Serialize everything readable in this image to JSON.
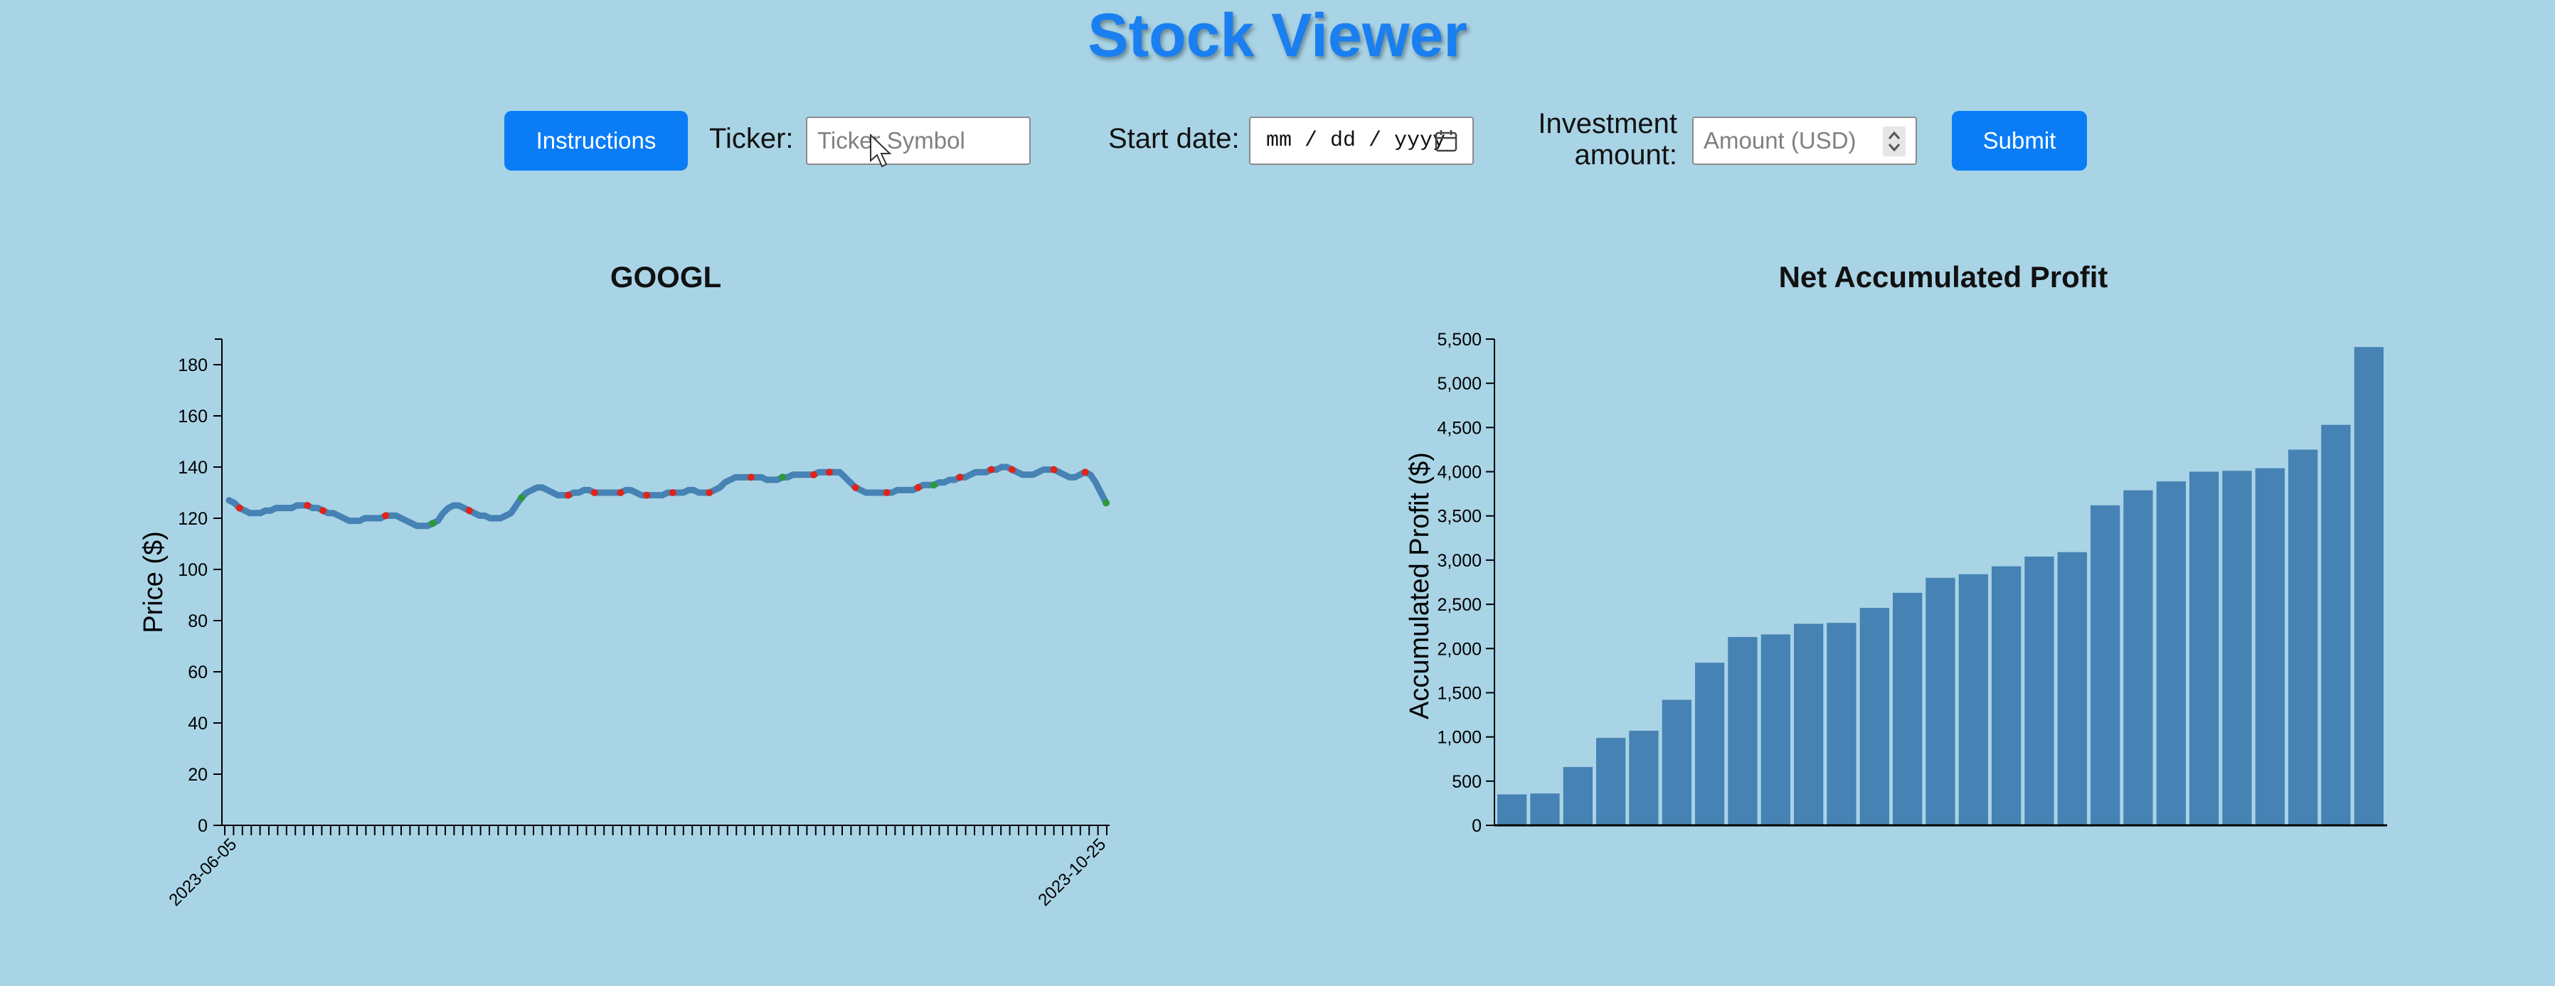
{
  "header": {
    "title": "Stock Viewer"
  },
  "controls": {
    "instructions_label": "Instructions",
    "ticker_label": "Ticker:",
    "ticker_placeholder": "Ticker Symbol",
    "ticker_value": "",
    "start_date_label": "Start date:",
    "start_date_display": "mm / dd / yyyy",
    "investment_label_line1": "Investment",
    "investment_label_line2": "amount:",
    "amount_placeholder": "Amount (USD)",
    "amount_value": "",
    "submit_label": "Submit"
  },
  "colors": {
    "background": "#a9d4e6",
    "accent": "#0a7cf6",
    "title": "#1a7ff0",
    "line": "#4682b4",
    "bar": "#4682b4",
    "buy_marker": "#e0241a",
    "sell_marker": "#2a9a35"
  },
  "chart_data": [
    {
      "type": "line",
      "title": "GOOGL",
      "xlabel": "",
      "ylabel": "Price ($)",
      "ylim": [
        0,
        190
      ],
      "yticks": [
        0,
        20,
        40,
        60,
        80,
        100,
        120,
        140,
        160,
        180
      ],
      "xtick_labels": [
        "2023-06-05",
        "2023-10-25"
      ],
      "x_tick_count": 100,
      "grid": false,
      "series": [
        {
          "values": [
            127,
            126,
            124,
            123,
            122,
            122,
            122,
            123,
            123,
            124,
            124,
            124,
            124,
            125,
            125,
            125,
            124,
            124,
            123,
            122,
            122,
            121,
            120,
            119,
            119,
            119,
            120,
            120,
            120,
            120,
            121,
            121,
            121,
            120,
            119,
            118,
            117,
            117,
            117,
            118,
            119,
            122,
            124,
            125,
            125,
            124,
            123,
            122,
            121,
            121,
            120,
            120,
            120,
            121,
            122,
            125,
            128,
            130,
            131,
            132,
            132,
            131,
            130,
            129,
            129,
            129,
            130,
            130,
            131,
            131,
            130,
            130,
            130,
            130,
            130,
            130,
            131,
            131,
            130,
            129,
            129,
            129,
            129,
            129,
            130,
            130,
            130,
            130,
            131,
            131,
            130,
            130,
            130,
            131,
            132,
            134,
            135,
            136,
            136,
            136,
            136,
            136,
            136,
            135,
            135,
            135,
            136,
            136,
            137,
            137,
            137,
            137,
            137,
            138,
            138,
            138,
            138,
            138,
            136,
            134,
            132,
            131,
            130,
            130,
            130,
            130,
            130,
            130,
            131,
            131,
            131,
            131,
            132,
            133,
            133,
            133,
            134,
            134,
            135,
            135,
            136,
            136,
            137,
            138,
            138,
            138,
            139,
            139,
            140,
            140,
            139,
            138,
            137,
            137,
            137,
            138,
            139,
            139,
            139,
            138,
            137,
            136,
            136,
            137,
            138,
            137,
            134,
            130,
            126
          ]
        }
      ],
      "markers": [
        {
          "i": 2,
          "color": "red"
        },
        {
          "i": 15,
          "color": "red"
        },
        {
          "i": 18,
          "color": "red"
        },
        {
          "i": 30,
          "color": "red"
        },
        {
          "i": 39,
          "color": "green"
        },
        {
          "i": 46,
          "color": "red"
        },
        {
          "i": 56,
          "color": "green"
        },
        {
          "i": 65,
          "color": "red"
        },
        {
          "i": 70,
          "color": "red"
        },
        {
          "i": 75,
          "color": "red"
        },
        {
          "i": 80,
          "color": "red"
        },
        {
          "i": 85,
          "color": "red"
        },
        {
          "i": 92,
          "color": "red"
        },
        {
          "i": 100,
          "color": "red"
        },
        {
          "i": 106,
          "color": "green"
        },
        {
          "i": 112,
          "color": "red"
        },
        {
          "i": 115,
          "color": "red"
        },
        {
          "i": 120,
          "color": "red"
        },
        {
          "i": 126,
          "color": "red"
        },
        {
          "i": 132,
          "color": "red"
        },
        {
          "i": 135,
          "color": "green"
        },
        {
          "i": 140,
          "color": "red"
        },
        {
          "i": 146,
          "color": "red"
        },
        {
          "i": 150,
          "color": "red"
        },
        {
          "i": 158,
          "color": "red"
        },
        {
          "i": 164,
          "color": "red"
        },
        {
          "i": 168,
          "color": "green"
        }
      ]
    },
    {
      "type": "bar",
      "title": "Net Accumulated Profit",
      "xlabel": "",
      "ylabel": "Accumulated Profit ($)",
      "ylim": [
        0,
        5500
      ],
      "yticks": [
        0,
        500,
        1000,
        1500,
        2000,
        2500,
        3000,
        3500,
        4000,
        4500,
        5000,
        5500
      ],
      "ytick_labels": [
        "0",
        "500",
        "1,000",
        "1,500",
        "2,000",
        "2,500",
        "3,000",
        "3,500",
        "4,000",
        "4,500",
        "5,000",
        "5,500"
      ],
      "grid": false,
      "values": [
        350,
        360,
        660,
        990,
        1070,
        1420,
        1840,
        2130,
        2160,
        2280,
        2290,
        2460,
        2630,
        2800,
        2840,
        2930,
        3040,
        3090,
        3620,
        3790,
        3890,
        4000,
        4010,
        4040,
        4250,
        4530,
        5410
      ]
    }
  ]
}
